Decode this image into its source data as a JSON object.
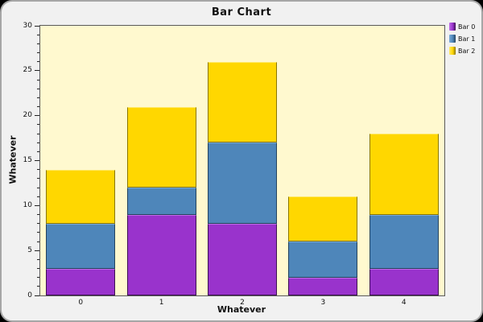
{
  "window": {
    "outer_background": "#000000",
    "panel_fill": "#f1f1f1",
    "panel_border": "#a6a6a6"
  },
  "chart_data": {
    "type": "bar",
    "stacked": true,
    "title": "Bar Chart",
    "xlabel": "Whatever",
    "ylabel": "Whatever",
    "categories": [
      "0",
      "1",
      "2",
      "3",
      "4"
    ],
    "series": [
      {
        "name": "Bar 0",
        "color": "#9933CC",
        "highlight": "#C06CE8",
        "outline": "#3D1152",
        "values": [
          3,
          9,
          8,
          2,
          3
        ]
      },
      {
        "name": "Bar 1",
        "color": "#4E86BA",
        "highlight": "#7AABD8",
        "outline": "#24435E",
        "values": [
          5,
          3,
          9,
          4,
          6
        ]
      },
      {
        "name": "Bar 2",
        "color": "#FFD700",
        "highlight": "#FFE96A",
        "outline": "#8A7600",
        "values": [
          6,
          9,
          9,
          5,
          9
        ]
      }
    ],
    "stack_totals": [
      14,
      21,
      26,
      11,
      18
    ],
    "ylim": [
      0,
      30
    ],
    "y_major_ticks": [
      0,
      5,
      10,
      15,
      20,
      25,
      30
    ],
    "y_minor_step": 1,
    "grid": false,
    "legend_position": "top-right",
    "plot_background": "#FFF9CF",
    "plot_border": "#5a5a5a"
  }
}
